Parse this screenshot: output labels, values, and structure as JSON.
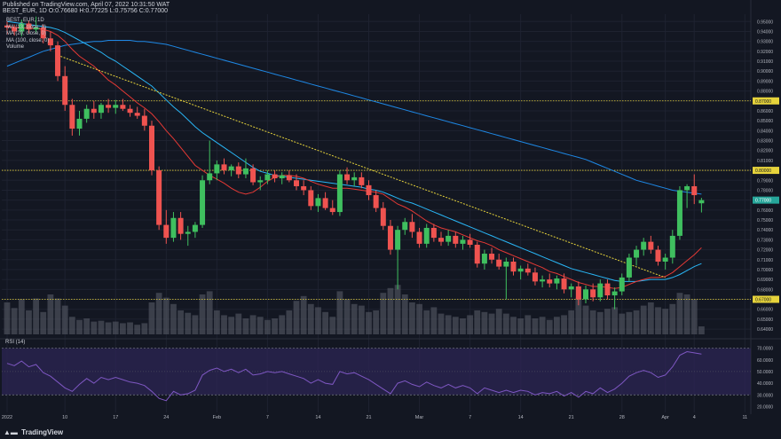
{
  "header": {
    "published_line": "Published on TradingView.com, April 07, 2022 10:31:50 WAT",
    "symbol_line": "BEST_EUR, 1D  O:0.76680 H:0.77225 L:0.75756 C:0.77000"
  },
  "legend": {
    "items": [
      "BEST_EUR, 1D",
      "MA (13, close, 0)",
      "MA (20, close, 0)",
      "MA (100, close, 0)",
      "Volume"
    ]
  },
  "rsi": {
    "label": "RSI (14)",
    "axis_ticks": [
      "70.0000",
      "60.0000",
      "50.0000",
      "40.0000",
      "30.0000",
      "20.0000"
    ]
  },
  "footer": {
    "brand": "TradingView"
  },
  "colors": {
    "background": "#131722",
    "up": "#26a69a",
    "up_bright": "#3fbf5f",
    "down": "#ef5350",
    "ma13": "#e53935",
    "ma20": "#29b6f6",
    "ma100": "#1e88e5",
    "trendline": "#e6d33b",
    "hline": "#e6d33b",
    "rsi_line": "#7e57c2",
    "rsi_band": "#2a2451",
    "volume": "#5d606b"
  },
  "chart_data": {
    "type": "candlestick",
    "symbol": "BEST_EUR",
    "timeframe": "1D",
    "price_axis": {
      "ylim": [
        0.6338,
        0.9574
      ],
      "ticks": [
        "0.95000",
        "0.94000",
        "0.93000",
        "0.92000",
        "0.91000",
        "0.90000",
        "0.89000",
        "0.88000",
        "0.87000",
        "0.86000",
        "0.85000",
        "0.84000",
        "0.83000",
        "0.82000",
        "0.81000",
        "0.80000",
        "0.79000",
        "0.78000",
        "0.77000",
        "0.76000",
        "0.75000",
        "0.74000",
        "0.73000",
        "0.72000",
        "0.71000",
        "0.70000",
        "0.69000",
        "0.68000",
        "0.67000",
        "0.66000",
        "0.65000",
        "0.64000"
      ]
    },
    "x_axis": {
      "tick_labels": [
        "2022",
        "10",
        "17",
        "24",
        "Feb",
        "7",
        "14",
        "21",
        "Mar",
        "7",
        "14",
        "21",
        "28",
        "Apr",
        "4",
        "11"
      ],
      "tick_index": [
        0,
        8,
        15,
        22,
        29,
        36,
        43,
        50,
        57,
        64,
        71,
        78,
        85,
        91,
        95,
        102
      ]
    },
    "horizontal_levels": [
      {
        "value": 0.87,
        "label": "0.87000"
      },
      {
        "value": 0.8,
        "label": "0.80000"
      },
      {
        "value": 0.67,
        "label": "0.67000"
      }
    ],
    "last_price": {
      "value": 0.77,
      "label": "0.77000"
    },
    "trendline": {
      "from": {
        "index": 7,
        "value": 0.916
      },
      "to": {
        "index": 91,
        "value": 0.692
      }
    },
    "candles": [
      {
        "o": 0.946,
        "h": 0.95,
        "l": 0.937,
        "c": 0.944
      },
      {
        "o": 0.944,
        "h": 0.947,
        "l": 0.936,
        "c": 0.94
      },
      {
        "o": 0.94,
        "h": 0.952,
        "l": 0.935,
        "c": 0.948
      },
      {
        "o": 0.948,
        "h": 0.951,
        "l": 0.938,
        "c": 0.942
      },
      {
        "o": 0.942,
        "h": 0.955,
        "l": 0.938,
        "c": 0.944
      },
      {
        "o": 0.944,
        "h": 0.947,
        "l": 0.928,
        "c": 0.933
      },
      {
        "o": 0.933,
        "h": 0.94,
        "l": 0.92,
        "c": 0.926
      },
      {
        "o": 0.926,
        "h": 0.93,
        "l": 0.89,
        "c": 0.895
      },
      {
        "o": 0.895,
        "h": 0.905,
        "l": 0.86,
        "c": 0.866
      },
      {
        "o": 0.866,
        "h": 0.872,
        "l": 0.835,
        "c": 0.842
      },
      {
        "o": 0.842,
        "h": 0.86,
        "l": 0.835,
        "c": 0.852
      },
      {
        "o": 0.852,
        "h": 0.866,
        "l": 0.848,
        "c": 0.862
      },
      {
        "o": 0.862,
        "h": 0.87,
        "l": 0.852,
        "c": 0.858
      },
      {
        "o": 0.858,
        "h": 0.868,
        "l": 0.852,
        "c": 0.866
      },
      {
        "o": 0.866,
        "h": 0.872,
        "l": 0.858,
        "c": 0.863
      },
      {
        "o": 0.863,
        "h": 0.871,
        "l": 0.857,
        "c": 0.866
      },
      {
        "o": 0.866,
        "h": 0.872,
        "l": 0.86,
        "c": 0.862
      },
      {
        "o": 0.862,
        "h": 0.866,
        "l": 0.854,
        "c": 0.858
      },
      {
        "o": 0.858,
        "h": 0.864,
        "l": 0.852,
        "c": 0.855
      },
      {
        "o": 0.855,
        "h": 0.862,
        "l": 0.84,
        "c": 0.845
      },
      {
        "o": 0.845,
        "h": 0.85,
        "l": 0.795,
        "c": 0.8
      },
      {
        "o": 0.8,
        "h": 0.804,
        "l": 0.74,
        "c": 0.745
      },
      {
        "o": 0.745,
        "h": 0.76,
        "l": 0.726,
        "c": 0.732
      },
      {
        "o": 0.732,
        "h": 0.758,
        "l": 0.728,
        "c": 0.752
      },
      {
        "o": 0.752,
        "h": 0.758,
        "l": 0.73,
        "c": 0.736
      },
      {
        "o": 0.736,
        "h": 0.744,
        "l": 0.724,
        "c": 0.738
      },
      {
        "o": 0.738,
        "h": 0.748,
        "l": 0.732,
        "c": 0.745
      },
      {
        "o": 0.745,
        "h": 0.795,
        "l": 0.742,
        "c": 0.79
      },
      {
        "o": 0.79,
        "h": 0.83,
        "l": 0.786,
        "c": 0.797
      },
      {
        "o": 0.797,
        "h": 0.81,
        "l": 0.79,
        "c": 0.806
      },
      {
        "o": 0.806,
        "h": 0.812,
        "l": 0.796,
        "c": 0.8
      },
      {
        "o": 0.8,
        "h": 0.806,
        "l": 0.794,
        "c": 0.804
      },
      {
        "o": 0.804,
        "h": 0.808,
        "l": 0.792,
        "c": 0.796
      },
      {
        "o": 0.796,
        "h": 0.812,
        "l": 0.792,
        "c": 0.802
      },
      {
        "o": 0.802,
        "h": 0.806,
        "l": 0.785,
        "c": 0.788
      },
      {
        "o": 0.788,
        "h": 0.794,
        "l": 0.78,
        "c": 0.79
      },
      {
        "o": 0.79,
        "h": 0.8,
        "l": 0.786,
        "c": 0.796
      },
      {
        "o": 0.796,
        "h": 0.8,
        "l": 0.788,
        "c": 0.792
      },
      {
        "o": 0.792,
        "h": 0.798,
        "l": 0.786,
        "c": 0.795
      },
      {
        "o": 0.795,
        "h": 0.8,
        "l": 0.788,
        "c": 0.79
      },
      {
        "o": 0.79,
        "h": 0.796,
        "l": 0.78,
        "c": 0.784
      },
      {
        "o": 0.784,
        "h": 0.79,
        "l": 0.775,
        "c": 0.78
      },
      {
        "o": 0.78,
        "h": 0.784,
        "l": 0.76,
        "c": 0.764
      },
      {
        "o": 0.764,
        "h": 0.776,
        "l": 0.758,
        "c": 0.772
      },
      {
        "o": 0.772,
        "h": 0.778,
        "l": 0.76,
        "c": 0.762
      },
      {
        "o": 0.762,
        "h": 0.77,
        "l": 0.755,
        "c": 0.758
      },
      {
        "o": 0.758,
        "h": 0.8,
        "l": 0.754,
        "c": 0.796
      },
      {
        "o": 0.796,
        "h": 0.803,
        "l": 0.786,
        "c": 0.79
      },
      {
        "o": 0.79,
        "h": 0.798,
        "l": 0.784,
        "c": 0.793
      },
      {
        "o": 0.793,
        "h": 0.798,
        "l": 0.782,
        "c": 0.785
      },
      {
        "o": 0.785,
        "h": 0.79,
        "l": 0.77,
        "c": 0.775
      },
      {
        "o": 0.775,
        "h": 0.78,
        "l": 0.758,
        "c": 0.762
      },
      {
        "o": 0.762,
        "h": 0.768,
        "l": 0.74,
        "c": 0.744
      },
      {
        "o": 0.744,
        "h": 0.75,
        "l": 0.715,
        "c": 0.72
      },
      {
        "o": 0.72,
        "h": 0.744,
        "l": 0.68,
        "c": 0.74
      },
      {
        "o": 0.74,
        "h": 0.752,
        "l": 0.735,
        "c": 0.748
      },
      {
        "o": 0.748,
        "h": 0.756,
        "l": 0.732,
        "c": 0.738
      },
      {
        "o": 0.738,
        "h": 0.742,
        "l": 0.722,
        "c": 0.726
      },
      {
        "o": 0.726,
        "h": 0.746,
        "l": 0.722,
        "c": 0.742
      },
      {
        "o": 0.742,
        "h": 0.746,
        "l": 0.728,
        "c": 0.732
      },
      {
        "o": 0.732,
        "h": 0.738,
        "l": 0.724,
        "c": 0.728
      },
      {
        "o": 0.728,
        "h": 0.74,
        "l": 0.724,
        "c": 0.734
      },
      {
        "o": 0.734,
        "h": 0.738,
        "l": 0.722,
        "c": 0.726
      },
      {
        "o": 0.726,
        "h": 0.734,
        "l": 0.72,
        "c": 0.73
      },
      {
        "o": 0.73,
        "h": 0.736,
        "l": 0.722,
        "c": 0.725
      },
      {
        "o": 0.725,
        "h": 0.728,
        "l": 0.702,
        "c": 0.706
      },
      {
        "o": 0.706,
        "h": 0.72,
        "l": 0.7,
        "c": 0.716
      },
      {
        "o": 0.716,
        "h": 0.722,
        "l": 0.706,
        "c": 0.71
      },
      {
        "o": 0.71,
        "h": 0.716,
        "l": 0.7,
        "c": 0.703
      },
      {
        "o": 0.703,
        "h": 0.712,
        "l": 0.67,
        "c": 0.708
      },
      {
        "o": 0.708,
        "h": 0.712,
        "l": 0.694,
        "c": 0.698
      },
      {
        "o": 0.698,
        "h": 0.704,
        "l": 0.69,
        "c": 0.701
      },
      {
        "o": 0.701,
        "h": 0.706,
        "l": 0.694,
        "c": 0.697
      },
      {
        "o": 0.697,
        "h": 0.702,
        "l": 0.684,
        "c": 0.688
      },
      {
        "o": 0.688,
        "h": 0.694,
        "l": 0.682,
        "c": 0.69
      },
      {
        "o": 0.69,
        "h": 0.696,
        "l": 0.682,
        "c": 0.686
      },
      {
        "o": 0.686,
        "h": 0.694,
        "l": 0.68,
        "c": 0.691
      },
      {
        "o": 0.691,
        "h": 0.696,
        "l": 0.676,
        "c": 0.68
      },
      {
        "o": 0.68,
        "h": 0.686,
        "l": 0.672,
        "c": 0.683
      },
      {
        "o": 0.683,
        "h": 0.688,
        "l": 0.664,
        "c": 0.67
      },
      {
        "o": 0.67,
        "h": 0.684,
        "l": 0.666,
        "c": 0.68
      },
      {
        "o": 0.68,
        "h": 0.686,
        "l": 0.668,
        "c": 0.672
      },
      {
        "o": 0.672,
        "h": 0.69,
        "l": 0.668,
        "c": 0.686
      },
      {
        "o": 0.686,
        "h": 0.69,
        "l": 0.67,
        "c": 0.674
      },
      {
        "o": 0.674,
        "h": 0.682,
        "l": 0.66,
        "c": 0.678
      },
      {
        "o": 0.678,
        "h": 0.696,
        "l": 0.674,
        "c": 0.692
      },
      {
        "o": 0.692,
        "h": 0.716,
        "l": 0.688,
        "c": 0.712
      },
      {
        "o": 0.712,
        "h": 0.724,
        "l": 0.704,
        "c": 0.72
      },
      {
        "o": 0.72,
        "h": 0.732,
        "l": 0.714,
        "c": 0.728
      },
      {
        "o": 0.728,
        "h": 0.734,
        "l": 0.716,
        "c": 0.72
      },
      {
        "o": 0.72,
        "h": 0.724,
        "l": 0.704,
        "c": 0.708
      },
      {
        "o": 0.708,
        "h": 0.716,
        "l": 0.7,
        "c": 0.712
      },
      {
        "o": 0.712,
        "h": 0.74,
        "l": 0.706,
        "c": 0.734
      },
      {
        "o": 0.734,
        "h": 0.784,
        "l": 0.73,
        "c": 0.78
      },
      {
        "o": 0.78,
        "h": 0.786,
        "l": 0.762,
        "c": 0.784
      },
      {
        "o": 0.784,
        "h": 0.796,
        "l": 0.766,
        "c": 0.775
      },
      {
        "o": 0.7668,
        "h": 0.77225,
        "l": 0.75756,
        "c": 0.77
      }
    ],
    "volume": [
      0.4,
      0.33,
      0.44,
      0.3,
      0.45,
      0.28,
      0.5,
      0.45,
      0.36,
      0.22,
      0.18,
      0.2,
      0.16,
      0.17,
      0.15,
      0.16,
      0.14,
      0.15,
      0.12,
      0.14,
      0.4,
      0.52,
      0.46,
      0.38,
      0.3,
      0.27,
      0.24,
      0.5,
      0.54,
      0.3,
      0.24,
      0.22,
      0.26,
      0.2,
      0.24,
      0.22,
      0.18,
      0.2,
      0.24,
      0.3,
      0.42,
      0.48,
      0.38,
      0.34,
      0.28,
      0.22,
      0.54,
      0.44,
      0.38,
      0.36,
      0.28,
      0.3,
      0.52,
      0.58,
      0.62,
      0.5,
      0.4,
      0.38,
      0.3,
      0.34,
      0.26,
      0.24,
      0.22,
      0.2,
      0.24,
      0.3,
      0.28,
      0.26,
      0.32,
      0.26,
      0.22,
      0.2,
      0.24,
      0.2,
      0.22,
      0.18,
      0.22,
      0.24,
      0.3,
      0.46,
      0.36,
      0.3,
      0.28,
      0.32,
      0.34,
      0.26,
      0.28,
      0.3,
      0.36,
      0.4,
      0.34,
      0.32,
      0.38,
      0.52,
      0.5,
      0.44,
      0.1
    ],
    "rsi": [
      57,
      55,
      59,
      54,
      56,
      49,
      46,
      41,
      36,
      33,
      39,
      44,
      40,
      45,
      43,
      45,
      43,
      41,
      40,
      38,
      33,
      27,
      25,
      33,
      30,
      31,
      34,
      47,
      51,
      53,
      50,
      52,
      49,
      52,
      47,
      48,
      50,
      49,
      50,
      48,
      46,
      44,
      40,
      43,
      40,
      39,
      50,
      48,
      49,
      46,
      43,
      39,
      35,
      31,
      40,
      42,
      39,
      37,
      41,
      38,
      36,
      39,
      36,
      38,
      36,
      31,
      36,
      34,
      32,
      34,
      32,
      34,
      33,
      30,
      32,
      31,
      33,
      29,
      32,
      28,
      33,
      31,
      36,
      32,
      35,
      40,
      46,
      49,
      51,
      49,
      45,
      47,
      54,
      64,
      67,
      66,
      65
    ],
    "ma13": [
      0.946,
      0.944,
      0.944,
      0.943,
      0.943,
      0.942,
      0.94,
      0.936,
      0.93,
      0.922,
      0.915,
      0.91,
      0.905,
      0.898,
      0.891,
      0.886,
      0.88,
      0.874,
      0.868,
      0.863,
      0.857,
      0.849,
      0.84,
      0.832,
      0.823,
      0.814,
      0.805,
      0.8,
      0.795,
      0.791,
      0.787,
      0.782,
      0.778,
      0.776,
      0.778,
      0.783,
      0.789,
      0.793,
      0.795,
      0.795,
      0.794,
      0.792,
      0.789,
      0.786,
      0.784,
      0.782,
      0.782,
      0.782,
      0.781,
      0.78,
      0.779,
      0.778,
      0.776,
      0.771,
      0.766,
      0.763,
      0.759,
      0.754,
      0.749,
      0.745,
      0.742,
      0.74,
      0.738,
      0.735,
      0.732,
      0.729,
      0.727,
      0.724,
      0.72,
      0.717,
      0.714,
      0.711,
      0.708,
      0.705,
      0.702,
      0.698,
      0.696,
      0.693,
      0.69,
      0.687,
      0.685,
      0.683,
      0.683,
      0.682,
      0.681,
      0.682,
      0.685,
      0.688,
      0.69,
      0.692,
      0.692,
      0.693,
      0.697,
      0.703,
      0.709,
      0.715,
      0.722
    ],
    "ma20": [
      0.95,
      0.949,
      0.948,
      0.947,
      0.946,
      0.945,
      0.944,
      0.942,
      0.939,
      0.935,
      0.931,
      0.927,
      0.923,
      0.919,
      0.914,
      0.91,
      0.905,
      0.9,
      0.895,
      0.89,
      0.885,
      0.878,
      0.871,
      0.864,
      0.858,
      0.851,
      0.844,
      0.838,
      0.833,
      0.828,
      0.823,
      0.818,
      0.813,
      0.808,
      0.803,
      0.799,
      0.797,
      0.795,
      0.794,
      0.793,
      0.792,
      0.791,
      0.79,
      0.789,
      0.788,
      0.787,
      0.786,
      0.785,
      0.784,
      0.783,
      0.781,
      0.78,
      0.778,
      0.775,
      0.772,
      0.769,
      0.767,
      0.764,
      0.761,
      0.758,
      0.755,
      0.752,
      0.749,
      0.746,
      0.743,
      0.74,
      0.737,
      0.734,
      0.731,
      0.728,
      0.725,
      0.722,
      0.719,
      0.716,
      0.713,
      0.71,
      0.707,
      0.704,
      0.701,
      0.699,
      0.697,
      0.695,
      0.693,
      0.691,
      0.689,
      0.688,
      0.688,
      0.688,
      0.689,
      0.69,
      0.69,
      0.69,
      0.692,
      0.695,
      0.699,
      0.703,
      0.706
    ],
    "ma100": [
      0.905,
      0.908,
      0.911,
      0.914,
      0.917,
      0.92,
      0.922,
      0.924,
      0.926,
      0.927,
      0.928,
      0.929,
      0.93,
      0.93,
      0.931,
      0.931,
      0.931,
      0.931,
      0.93,
      0.93,
      0.929,
      0.928,
      0.927,
      0.925,
      0.923,
      0.921,
      0.919,
      0.917,
      0.915,
      0.913,
      0.911,
      0.909,
      0.907,
      0.905,
      0.903,
      0.901,
      0.899,
      0.897,
      0.895,
      0.893,
      0.891,
      0.889,
      0.887,
      0.885,
      0.883,
      0.881,
      0.879,
      0.877,
      0.875,
      0.873,
      0.871,
      0.869,
      0.867,
      0.865,
      0.863,
      0.861,
      0.859,
      0.857,
      0.855,
      0.853,
      0.851,
      0.849,
      0.847,
      0.845,
      0.843,
      0.841,
      0.839,
      0.837,
      0.835,
      0.833,
      0.831,
      0.829,
      0.827,
      0.825,
      0.823,
      0.821,
      0.819,
      0.817,
      0.815,
      0.813,
      0.811,
      0.808,
      0.805,
      0.802,
      0.799,
      0.796,
      0.793,
      0.79,
      0.788,
      0.786,
      0.784,
      0.782,
      0.78,
      0.779,
      0.778,
      0.777,
      0.776
    ]
  }
}
